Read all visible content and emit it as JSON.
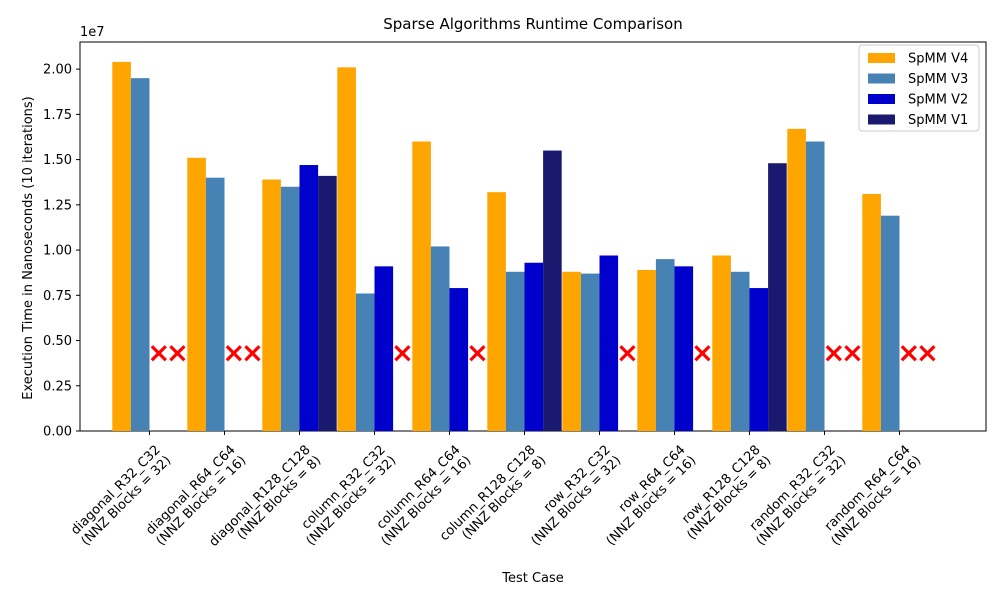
{
  "chart_data": {
    "type": "bar",
    "title": "Sparse Algorithms Runtime Comparison",
    "xlabel": "Test Case",
    "ylabel": "Execution Time in Nanoseconds (10 iterations)",
    "y_scale_label": "1e7",
    "ylim": [
      0,
      21500000
    ],
    "yticks": [
      0,
      2500000,
      5000000,
      7500000,
      10000000,
      12500000,
      15000000,
      17500000,
      20000000
    ],
    "ytick_labels": [
      "0.00",
      "0.25",
      "0.50",
      "0.75",
      "1.00",
      "1.25",
      "1.50",
      "1.75",
      "2.00"
    ],
    "categories": [
      "diagonal_R32_C32\n(NNZ Blocks = 32)",
      "diagonal_R64_C64\n(NNZ Blocks = 16)",
      "diagonal_R128_C128\n(NNZ Blocks = 8)",
      "column_R32_C32\n(NNZ Blocks = 32)",
      "column_R64_C64\n(NNZ Blocks = 16)",
      "column_R128_C128\n(NNZ Blocks = 8)",
      "row_R32_C32\n(NNZ Blocks = 32)",
      "row_R64_C64\n(NNZ Blocks = 16)",
      "row_R128_C128\n(NNZ Blocks = 8)",
      "random_R32_C32\n(NNZ Blocks = 32)",
      "random_R64_C64\n(NNZ Blocks = 16)"
    ],
    "series": [
      {
        "name": "SpMM V4",
        "color": "#FFA500",
        "values": [
          20400000,
          15100000,
          13900000,
          20100000,
          16000000,
          13200000,
          8800000,
          8900000,
          9700000,
          16700000,
          13100000
        ]
      },
      {
        "name": "SpMM V3",
        "color": "#4682B4",
        "values": [
          19500000,
          14000000,
          13500000,
          7600000,
          10200000,
          8800000,
          8700000,
          9500000,
          8800000,
          16000000,
          11900000
        ]
      },
      {
        "name": "SpMM V2",
        "color": "#0000CD",
        "values": [
          null,
          null,
          14700000,
          9100000,
          7900000,
          9300000,
          9700000,
          9100000,
          7900000,
          null,
          null
        ]
      },
      {
        "name": "SpMM V1",
        "color": "#191970",
        "values": [
          null,
          null,
          14100000,
          null,
          null,
          15500000,
          null,
          null,
          14800000,
          null,
          null
        ]
      }
    ],
    "missing_marker": {
      "symbol": "x",
      "color": "#FF0000",
      "y_value": 4300000
    },
    "legend_position": "top-right",
    "grid": false
  }
}
